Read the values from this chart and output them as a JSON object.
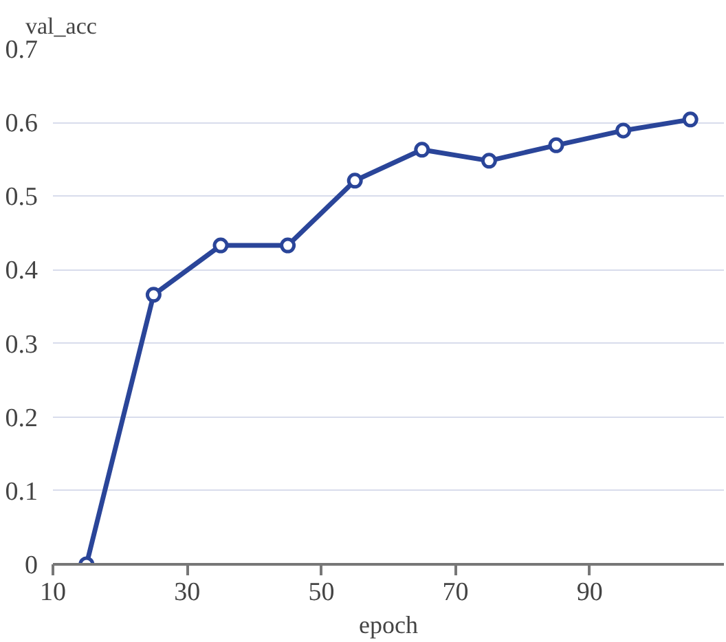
{
  "chart_data": {
    "type": "line",
    "xlabel": "epoch",
    "ylabel": "val_acc",
    "x": [
      15,
      25,
      35,
      45,
      55,
      65,
      75,
      85,
      95,
      105
    ],
    "series": [
      {
        "color": "#2a4599",
        "values": [
          0,
          0.366,
          0.433,
          0.433,
          0.521,
          0.563,
          0.548,
          0.569,
          0.589,
          0.604
        ]
      }
    ],
    "xlim": [
      10,
      110
    ],
    "xticks": [
      10,
      30,
      50,
      70,
      90
    ],
    "ylim": [
      0,
      0.7
    ],
    "yticks": [
      0,
      {
        "value": 0.1,
        "label": "0.1"
      },
      {
        "value": 0.2,
        "label": "0.2"
      },
      {
        "value": 0.3,
        "label": "0.3"
      },
      {
        "value": 0.4,
        "label": "0.4"
      },
      {
        "value": 0.5,
        "label": "0.5"
      },
      {
        "value": 0.6,
        "label": "0.6"
      },
      {
        "value": 0.7,
        "label": "0.7"
      }
    ],
    "grid": "y",
    "marker": "circle",
    "line_style": "solid"
  }
}
